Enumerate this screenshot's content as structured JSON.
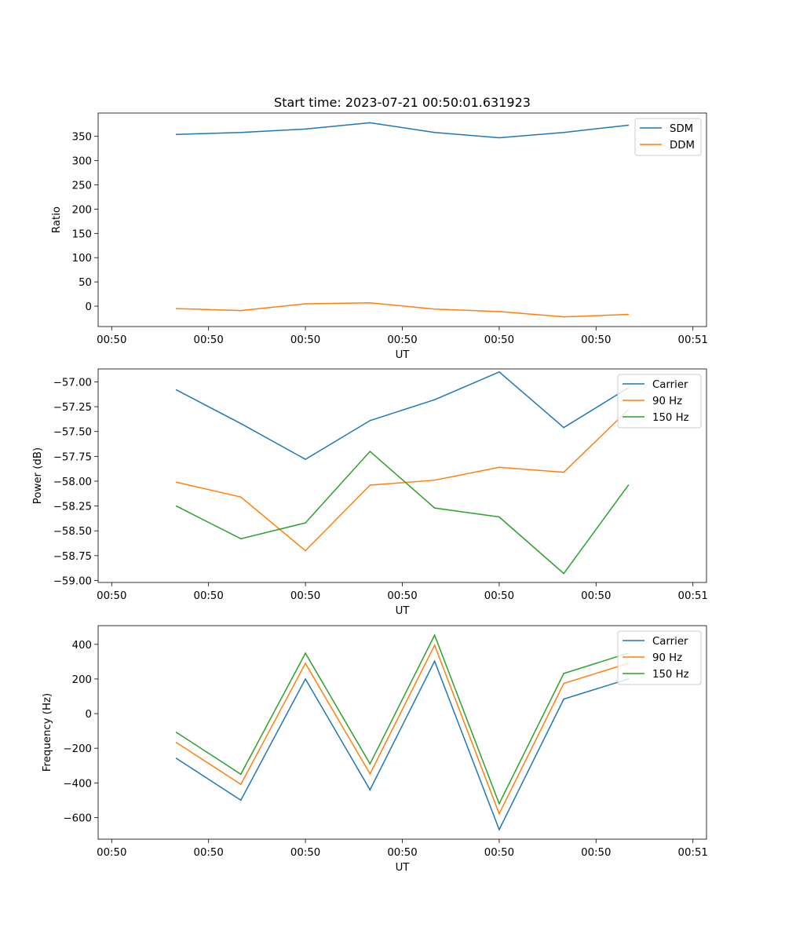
{
  "figure": {
    "title": "Start time: 2023-07-21 00:50:01.631923"
  },
  "chart_data": [
    {
      "type": "line",
      "title": "Start time: 2023-07-21 00:50:01.631923",
      "xlabel": "UT",
      "ylabel": "Ratio",
      "x": [
        1,
        2,
        3,
        4,
        5,
        6,
        7,
        8
      ],
      "xlim": [
        -0.21,
        9.21
      ],
      "x_ticks": [
        0,
        1.5,
        3,
        4.5,
        6,
        7.5,
        9
      ],
      "x_tick_labels": [
        "00:50",
        "00:50",
        "00:50",
        "00:50",
        "00:50",
        "00:50",
        "00:51"
      ],
      "ylim": [
        -42,
        398
      ],
      "y_ticks": [
        0,
        50,
        100,
        150,
        200,
        250,
        300,
        350
      ],
      "y_tick_labels": [
        "0",
        "50",
        "100",
        "150",
        "200",
        "250",
        "300",
        "350"
      ],
      "legend_position": "top-right",
      "series": [
        {
          "name": "SDM",
          "color": "#1f77b4",
          "values": [
            354,
            358,
            365,
            378,
            358,
            347,
            358,
            373
          ]
        },
        {
          "name": "DDM",
          "color": "#ff7f0e",
          "values": [
            -5,
            -9,
            5,
            7,
            -6,
            -11,
            -22,
            -17
          ]
        }
      ]
    },
    {
      "type": "line",
      "title": "",
      "xlabel": "UT",
      "ylabel": "Power (dB)",
      "x": [
        1,
        2,
        3,
        4,
        5,
        6,
        7,
        8
      ],
      "xlim": [
        -0.21,
        9.21
      ],
      "x_ticks": [
        0,
        1.5,
        3,
        4.5,
        6,
        7.5,
        9
      ],
      "x_tick_labels": [
        "00:50",
        "00:50",
        "00:50",
        "00:50",
        "00:50",
        "00:50",
        "00:51"
      ],
      "ylim": [
        -59.02,
        -56.87
      ],
      "y_ticks": [
        -59.0,
        -58.75,
        -58.5,
        -58.25,
        -58.0,
        -57.75,
        -57.5,
        -57.25,
        -57.0
      ],
      "y_tick_labels": [
        "−59.00",
        "−58.75",
        "−58.50",
        "−58.25",
        "−58.00",
        "−57.75",
        "−57.50",
        "−57.25",
        "−57.00"
      ],
      "legend_position": "top-right",
      "series": [
        {
          "name": "Carrier",
          "color": "#1f77b4",
          "values": [
            -57.08,
            -57.42,
            -57.78,
            -57.39,
            -57.18,
            -56.9,
            -57.46,
            -57.06
          ]
        },
        {
          "name": "90 Hz",
          "color": "#ff7f0e",
          "values": [
            -58.01,
            -58.16,
            -58.7,
            -58.04,
            -57.99,
            -57.86,
            -57.91,
            -57.28
          ]
        },
        {
          "name": "150 Hz",
          "color": "#2ca02c",
          "values": [
            -58.25,
            -58.58,
            -58.42,
            -57.7,
            -58.27,
            -58.36,
            -58.93,
            -58.04
          ]
        }
      ]
    },
    {
      "type": "line",
      "title": "",
      "xlabel": "UT",
      "ylabel": "Frequency (Hz)",
      "x": [
        1,
        2,
        3,
        4,
        5,
        6,
        7,
        8
      ],
      "xlim": [
        -0.21,
        9.21
      ],
      "x_ticks": [
        0,
        1.5,
        3,
        4.5,
        6,
        7.5,
        9
      ],
      "x_tick_labels": [
        "00:50",
        "00:50",
        "00:50",
        "00:50",
        "00:50",
        "00:50",
        "00:51"
      ],
      "ylim": [
        -725,
        508
      ],
      "y_ticks": [
        -600,
        -400,
        -200,
        0,
        200,
        400
      ],
      "y_tick_labels": [
        "−600",
        "−400",
        "−200",
        "0",
        "200",
        "400"
      ],
      "legend_position": "top-right",
      "series": [
        {
          "name": "Carrier",
          "color": "#1f77b4",
          "values": [
            -258,
            -500,
            200,
            -440,
            303,
            -670,
            84,
            200
          ]
        },
        {
          "name": "90 Hz",
          "color": "#ff7f0e",
          "values": [
            -167,
            -408,
            290,
            -348,
            395,
            -578,
            174,
            291
          ]
        },
        {
          "name": "150 Hz",
          "color": "#2ca02c",
          "values": [
            -108,
            -350,
            349,
            -290,
            453,
            -520,
            232,
            349
          ]
        }
      ]
    }
  ]
}
